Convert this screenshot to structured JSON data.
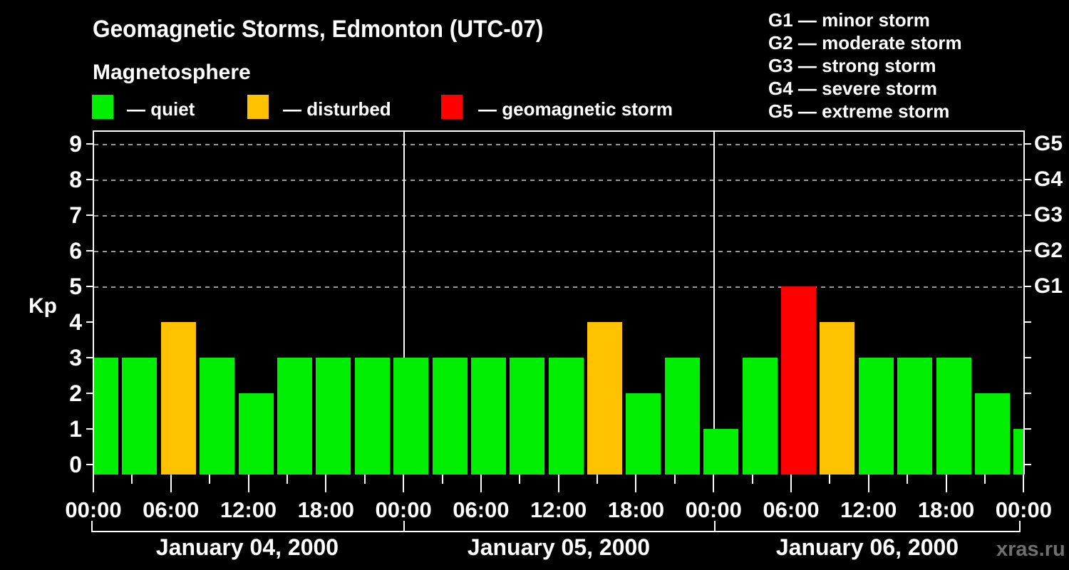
{
  "title": "Geomagnetic Storms, Edmonton (UTC-07)",
  "subtitle": "Magnetosphere",
  "status_legend": [
    {
      "status": "quiet",
      "label": "— quiet"
    },
    {
      "status": "disturbed",
      "label": "— disturbed"
    },
    {
      "status": "storm",
      "label": "— geomagnetic storm"
    }
  ],
  "g_scale_legend": [
    "G1 — minor storm",
    "G2 — moderate storm",
    "G3 — strong storm",
    "G4 — severe storm",
    "G5 — extreme storm"
  ],
  "y_axis": {
    "label": "Kp",
    "ticks": [
      0,
      1,
      2,
      3,
      4,
      5,
      6,
      7,
      8,
      9
    ]
  },
  "right_axis": {
    "labels": [
      {
        "text": "G1",
        "kp": 5
      },
      {
        "text": "G2",
        "kp": 6
      },
      {
        "text": "G3",
        "kp": 7
      },
      {
        "text": "G4",
        "kp": 8
      },
      {
        "text": "G5",
        "kp": 9
      }
    ]
  },
  "x_axis": {
    "time_labels": [
      "00:00",
      "06:00",
      "12:00",
      "18:00",
      "00:00",
      "06:00",
      "12:00",
      "18:00",
      "00:00",
      "06:00",
      "12:00",
      "18:00",
      "00:00"
    ],
    "date_labels": [
      "January 04, 2000",
      "January 05, 2000",
      "January 06, 2000"
    ]
  },
  "watermark": "xras.ru",
  "colors": {
    "quiet": "#00ee00",
    "disturbed": "#ffc200",
    "storm": "#ff0000",
    "background": "#000000",
    "text": "#ffffff",
    "grid": "#999999",
    "watermark": "#707070"
  },
  "chart_data": {
    "type": "bar",
    "title": "Geomagnetic Storms, Edmonton (UTC-07)",
    "subtitle": "Magnetosphere",
    "xlabel": "",
    "ylabel": "Kp",
    "ylim": [
      0,
      9.4
    ],
    "x_interval_hours": 3,
    "grid": "dashed horizontal lines at Kp 5,6,7,8,9",
    "legend_position": "top-left",
    "x": [
      "2000-01-04 00:00",
      "2000-01-04 03:00",
      "2000-01-04 06:00",
      "2000-01-04 09:00",
      "2000-01-04 12:00",
      "2000-01-04 15:00",
      "2000-01-04 18:00",
      "2000-01-04 21:00",
      "2000-01-05 00:00",
      "2000-01-05 03:00",
      "2000-01-05 06:00",
      "2000-01-05 09:00",
      "2000-01-05 12:00",
      "2000-01-05 15:00",
      "2000-01-05 18:00",
      "2000-01-05 21:00",
      "2000-01-06 00:00",
      "2000-01-06 03:00",
      "2000-01-06 06:00",
      "2000-01-06 09:00",
      "2000-01-06 12:00",
      "2000-01-06 15:00",
      "2000-01-06 18:00",
      "2000-01-06 21:00",
      "2000-01-07 00:00"
    ],
    "values": [
      3,
      3,
      4,
      3,
      2,
      3,
      3,
      3,
      3,
      3,
      3,
      3,
      3,
      4,
      2,
      3,
      1,
      3,
      5,
      4,
      3,
      3,
      3,
      2,
      1
    ],
    "status": [
      "quiet",
      "quiet",
      "disturbed",
      "quiet",
      "quiet",
      "quiet",
      "quiet",
      "quiet",
      "quiet",
      "quiet",
      "quiet",
      "quiet",
      "quiet",
      "disturbed",
      "quiet",
      "quiet",
      "quiet",
      "quiet",
      "storm",
      "disturbed",
      "quiet",
      "quiet",
      "quiet",
      "quiet",
      "quiet"
    ],
    "thresholds": {
      "quiet_max_kp": 3,
      "disturbed_kp": 4,
      "storm_min_kp": 5
    },
    "right_axis_mapping": {
      "G1": 5,
      "G2": 6,
      "G3": 7,
      "G4": 8,
      "G5": 9
    },
    "day_labels": [
      "January 04, 2000",
      "January 05, 2000",
      "January 06, 2000"
    ],
    "time_tick_labels": [
      "00:00",
      "06:00",
      "12:00",
      "18:00",
      "00:00",
      "06:00",
      "12:00",
      "18:00",
      "00:00",
      "06:00",
      "12:00",
      "18:00",
      "00:00"
    ]
  }
}
